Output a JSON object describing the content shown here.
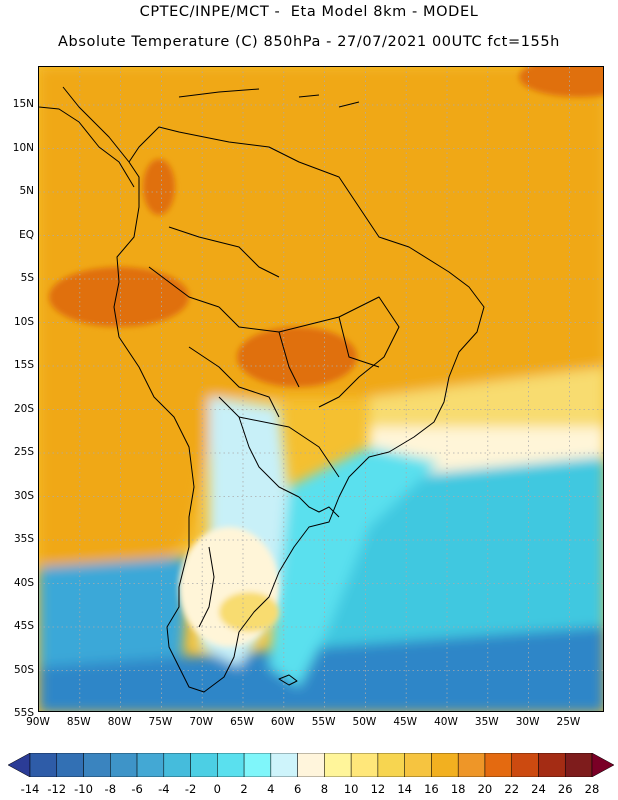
{
  "header": {
    "line1": "CPTEC/INPE/MCT -  Eta Model 8km - MODEL",
    "line2": "Absolute Temperature (C) 850hPa - 27/07/2021 00UTC fct=155h"
  },
  "map": {
    "lat_labels": [
      "15N",
      "10N",
      "5N",
      "EQ",
      "5S",
      "10S",
      "15S",
      "20S",
      "25S",
      "30S",
      "35S",
      "40S",
      "45S",
      "50S",
      "55S"
    ],
    "lon_labels": [
      "90W",
      "85W",
      "80W",
      "75W",
      "70W",
      "65W",
      "60W",
      "55W",
      "50W",
      "45W",
      "40W",
      "35W",
      "30W",
      "25W"
    ],
    "colors": {
      "warm_orange": "#f0a818",
      "light_orange": "#f5c030",
      "pale_yellow": "#f8dc70",
      "cream": "#fff5d8",
      "light_cyan": "#c8f0f8",
      "cyan": "#5ae0ee",
      "teal": "#40c8e0",
      "blue": "#3aa8d8",
      "deep_blue": "#2e86c8",
      "hot_spot": "#e07010"
    }
  },
  "colorbar": {
    "labels": [
      "-14",
      "-12",
      "-10",
      "-8",
      "-6",
      "-4",
      "-2",
      "0",
      "2",
      "4",
      "6",
      "8",
      "10",
      "12",
      "14",
      "16",
      "18",
      "20",
      "22",
      "24",
      "26",
      "28"
    ],
    "colors": [
      "#2b3c96",
      "#2e5ca8",
      "#3270b4",
      "#3a84bf",
      "#3e94c8",
      "#43a8d4",
      "#45bcdc",
      "#4ccfe4",
      "#5ae0ee",
      "#7ff6fa",
      "#cef4fb",
      "#fff5dc",
      "#fff59a",
      "#ffe77a",
      "#f7d550",
      "#f6c440",
      "#f2b020",
      "#ee9628",
      "#e46a10",
      "#cc4a10",
      "#a42c14",
      "#7e1c1c",
      "#7a0026"
    ]
  }
}
